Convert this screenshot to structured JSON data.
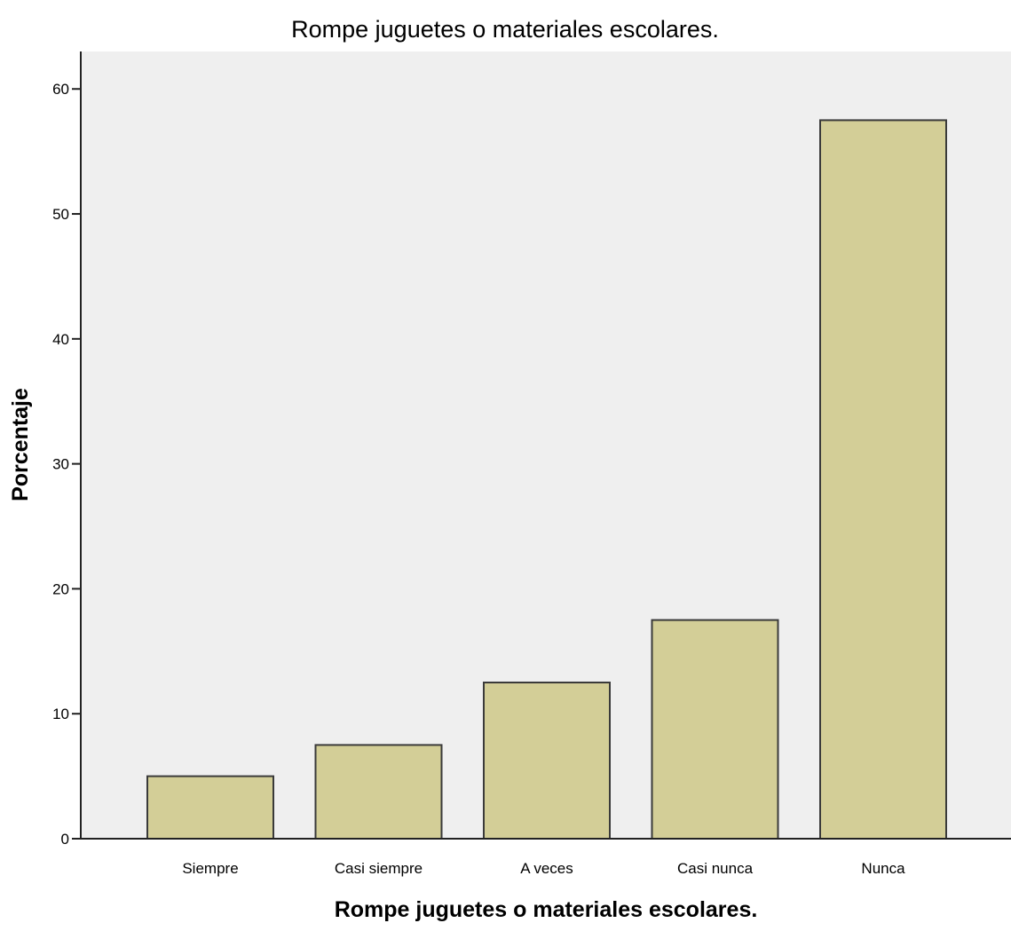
{
  "chart_data": {
    "type": "bar",
    "title": "Rompe juguetes o materiales escolares.",
    "xlabel": "Rompe juguetes o materiales escolares.",
    "ylabel": "Porcentaje",
    "categories": [
      "Siempre",
      "Casi siempre",
      "A veces",
      "Casi nunca",
      "Nunca"
    ],
    "values": [
      5.0,
      7.5,
      12.5,
      17.5,
      57.5
    ],
    "ylim": [
      0,
      63
    ],
    "yticks": [
      0,
      10,
      20,
      30,
      40,
      50,
      60
    ],
    "grid": false,
    "legend": "none",
    "colors": {
      "plot_background": "#efefef",
      "bar_fill": "#d3ce97",
      "bar_stroke": "#3a3a3a",
      "axis": "#222222",
      "page_background": "#ffffff"
    }
  }
}
